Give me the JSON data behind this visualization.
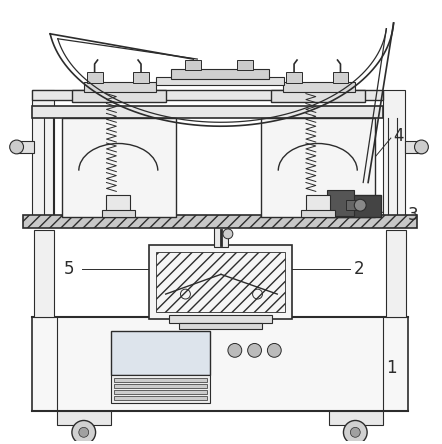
{
  "background_color": "#ffffff",
  "line_color": "#2c2c2c",
  "label_color": "#1a1a1a",
  "figsize": [
    4.42,
    4.44
  ],
  "dpi": 100
}
